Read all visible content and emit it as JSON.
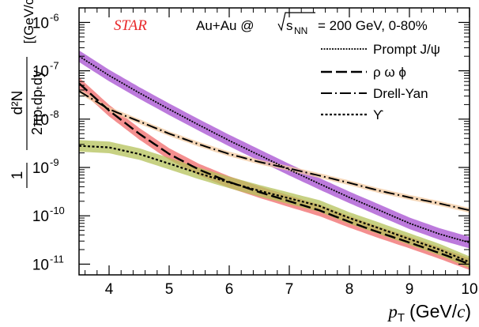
{
  "chart_data": {
    "type": "line",
    "experiment_label": "STAR",
    "system_label_prefix": "Au+Au @",
    "system_label_energy": "= 200 GeV, 0-80%",
    "xlabel_var": "p",
    "xlabel_sub": "T",
    "xlabel_unit": "(GeV/",
    "xlabel_unit_c": "c",
    "xlabel_unit_close": ")",
    "ylabel": "1/(2πpT dpT dy) [(GeV/c)^-2]",
    "xlim": [
      3.5,
      10
    ],
    "ylim": [
      6e-12,
      2e-06
    ],
    "yscale": "log",
    "x_ticks": [
      "4",
      "5",
      "6",
      "7",
      "8",
      "9",
      "10"
    ],
    "y_ticks": [
      {
        "base": "10",
        "exp": "-11"
      },
      {
        "base": "10",
        "exp": "-10"
      },
      {
        "base": "10",
        "exp": "-9"
      },
      {
        "base": "10",
        "exp": "-8"
      },
      {
        "base": "10",
        "exp": "-7"
      },
      {
        "base": "10",
        "exp": "-6"
      }
    ],
    "legend_position": "top-right",
    "series": [
      {
        "name": "Prompt J/ψ",
        "style": "dotted-dense",
        "color": "#000000",
        "band_color": "#a64ed0",
        "x": [
          3.5,
          4.0,
          4.5,
          5.0,
          5.5,
          6.0,
          6.5,
          7.0,
          7.5,
          8.0,
          8.5,
          9.0,
          9.5,
          10.0
        ],
        "y": [
          2e-07,
          8e-08,
          3.5e-08,
          1.6e-08,
          7.5e-09,
          3.6e-09,
          1.8e-09,
          9e-10,
          4.6e-10,
          2.4e-10,
          1.3e-10,
          7e-11,
          4.2e-11,
          2.8e-11
        ]
      },
      {
        "name": "ρ ω ϕ",
        "style": "long-dash",
        "color": "#000000",
        "band_color": "#f06a6a",
        "x": [
          3.5,
          4.0,
          4.5,
          5.0,
          5.5,
          6.0,
          6.5,
          7.0,
          7.5,
          8.0,
          8.5,
          9.0,
          9.5,
          10.0
        ],
        "y": [
          5.5e-08,
          1.5e-08,
          5e-09,
          1.9e-09,
          9e-10,
          5e-10,
          3.1e-10,
          2e-10,
          1.3e-10,
          7.5e-11,
          4.5e-11,
          2.8e-11,
          1.7e-11,
          1e-11
        ]
      },
      {
        "name": "Drell-Yan",
        "style": "dash-dot",
        "color": "#000000",
        "band_color": "#f2c9a0",
        "x": [
          3.5,
          4.0,
          4.5,
          5.0,
          5.5,
          6.0,
          6.5,
          7.0,
          7.5,
          8.0,
          8.5,
          9.0,
          9.5,
          10.0
        ],
        "y": [
          3.8e-08,
          1.6e-08,
          9e-09,
          5e-09,
          3e-09,
          1.9e-09,
          1.3e-09,
          9.5e-10,
          6.8e-10,
          4.8e-10,
          3.3e-10,
          2.4e-10,
          1.8e-10,
          1.3e-10
        ]
      },
      {
        "name": "ϒ",
        "style": "dotted",
        "color": "#000000",
        "band_color": "#b4c25a",
        "x": [
          3.5,
          4.0,
          4.5,
          5.0,
          5.5,
          6.0,
          6.5,
          7.0,
          7.5,
          8.0,
          8.5,
          9.0,
          9.5,
          10.0
        ],
        "y": [
          2.8e-09,
          2.6e-09,
          1.9e-09,
          1.2e-09,
          7.5e-10,
          4.9e-10,
          3.3e-10,
          2.3e-10,
          1.6e-10,
          9e-11,
          5.5e-11,
          3.3e-11,
          2e-11,
          1.1e-11
        ]
      }
    ]
  }
}
